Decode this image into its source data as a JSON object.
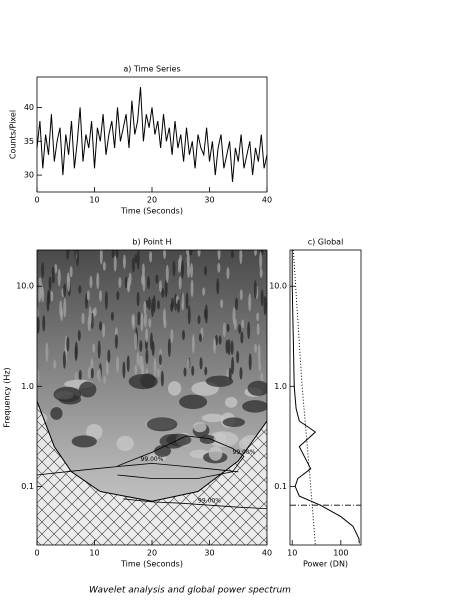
{
  "caption": "Wavelet analysis and global power spectrum",
  "chart_data": [
    {
      "type": "line",
      "title": "a) Time Series",
      "xlabel": "Time (Seconds)",
      "ylabel": "Counts/Pixel",
      "xlim": [
        0,
        40
      ],
      "xticks": [
        0,
        10,
        20,
        30,
        40
      ],
      "ylim": [
        27.5,
        44.5
      ],
      "yticks": [
        30,
        35,
        40
      ],
      "color": "#000000",
      "x": [
        0,
        0.5,
        1,
        1.5,
        2,
        2.5,
        3,
        3.5,
        4,
        4.5,
        5,
        5.5,
        6,
        6.5,
        7,
        7.5,
        8,
        8.5,
        9,
        9.5,
        10,
        10.5,
        11,
        11.5,
        12,
        12.5,
        13,
        13.5,
        14,
        14.5,
        15,
        15.5,
        16,
        16.5,
        17,
        17.5,
        18,
        18.5,
        19,
        19.5,
        20,
        20.5,
        21,
        21.5,
        22,
        22.5,
        23,
        23.5,
        24,
        24.5,
        25,
        25.5,
        26,
        26.5,
        27,
        27.5,
        28,
        28.5,
        29,
        29.5,
        30,
        30.5,
        31,
        31.5,
        32,
        32.5,
        33,
        33.5,
        34,
        34.5,
        35,
        35.5,
        36,
        36.5,
        37,
        37.5,
        38,
        38.5,
        39,
        39.5,
        40
      ],
      "values": [
        34,
        38,
        31,
        36,
        33,
        39,
        32,
        35,
        37,
        30,
        36,
        33,
        38,
        31,
        35,
        40,
        32,
        36,
        34,
        38,
        31,
        37,
        35,
        39,
        33,
        36,
        38,
        34,
        40,
        35,
        37,
        39,
        34,
        41,
        36,
        38,
        43,
        35,
        39,
        37,
        40,
        36,
        38,
        34,
        39,
        35,
        37,
        33,
        38,
        34,
        36,
        32,
        37,
        33,
        35,
        31,
        36,
        34,
        33,
        37,
        32,
        35,
        30,
        34,
        36,
        31,
        33,
        35,
        29,
        34,
        32,
        36,
        31,
        33,
        35,
        30,
        34,
        32,
        36,
        31,
        33
      ]
    },
    {
      "type": "wavelet",
      "title": "b) Point H",
      "xlabel": "Time (Seconds)",
      "ylabel": "Frequency (Hz)",
      "xlim": [
        0,
        40
      ],
      "xticks": [
        0,
        10,
        20,
        30,
        40
      ],
      "ylim": [
        0.026,
        23
      ],
      "log_y": true,
      "yticks": [
        {
          "value": 0.1,
          "label": "0.1"
        },
        {
          "value": 1,
          "label": "1.0"
        },
        {
          "value": 10,
          "label": "10.0"
        }
      ],
      "color": "#000000",
      "coi": {
        "x": [
          0,
          3,
          6,
          11,
          20,
          28,
          35,
          40
        ],
        "y": [
          0.71,
          0.25,
          0.14,
          0.089,
          0.071,
          0.089,
          0.18,
          0.45
        ]
      },
      "contours": [
        {
          "label": "99.00%",
          "x": [
            14,
            20,
            26,
            30,
            34,
            36,
            34,
            28,
            20,
            14
          ],
          "y": [
            0.16,
            0.22,
            0.32,
            0.3,
            0.24,
            0.2,
            0.14,
            0.12,
            0.12,
            0.13
          ]
        },
        {
          "label": "99.00%",
          "x": [
            0,
            5,
            10,
            15,
            20,
            25,
            30,
            35
          ],
          "y": [
            0.13,
            0.14,
            0.15,
            0.16,
            0.17,
            0.16,
            0.15,
            0.14
          ]
        },
        {
          "label": "99.00%",
          "x": [
            15,
            20,
            25,
            30,
            35,
            40
          ],
          "y": [
            0.075,
            0.07,
            0.068,
            0.065,
            0.062,
            0.06
          ]
        }
      ]
    },
    {
      "type": "global",
      "title": "c) Global",
      "xlabel": "Power (DN)",
      "xlim": [
        9,
        260
      ],
      "xticks": [
        10,
        100
      ],
      "log_x": true,
      "ylim": [
        0.026,
        23
      ],
      "log_y": true,
      "yticks": [
        {
          "value": 0.1,
          "label": "0.1"
        },
        {
          "value": 1,
          "label": "1.0"
        },
        {
          "value": 10,
          "label": "10.0"
        }
      ],
      "hline": 0.065,
      "series": [
        {
          "color": "#000000",
          "dash": "solid",
          "frequency": [
            23,
            10,
            3,
            1,
            0.6,
            0.45,
            0.35,
            0.25,
            0.15,
            0.12,
            0.1,
            0.08,
            0.065,
            0.05,
            0.04,
            0.03,
            0.027
          ],
          "power": [
            10,
            10,
            10.5,
            11,
            12,
            14,
            30,
            14,
            24,
            13,
            11.5,
            14,
            38,
            100,
            178,
            237,
            240
          ]
        },
        {
          "color": "#000000",
          "dash": "dotted",
          "frequency": [
            23,
            1,
            0.1,
            0.026
          ],
          "power": [
            10.5,
            16,
            24,
            30
          ]
        }
      ]
    }
  ]
}
